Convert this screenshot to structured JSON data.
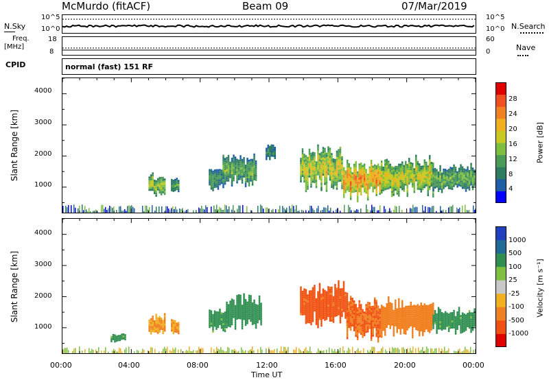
{
  "header": {
    "station": "McMurdo (fitACF)",
    "beam": "Beam 09",
    "date": "07/Mar/2019"
  },
  "noise_panel": {
    "left_label": "N.Sky",
    "right_label": "N.Search",
    "tick_top": "10^5",
    "tick_bottom": "10^0"
  },
  "freq_panel": {
    "left_label_line1": "Freq.",
    "left_label_line2": "[MHz]",
    "left_ticks": [
      "18",
      "8"
    ],
    "right_label": "Nave",
    "right_ticks": [
      "60",
      "0"
    ]
  },
  "cpid_panel": {
    "left_label": "CPID",
    "text": "normal (fast) 151 RF"
  },
  "power_panel": {
    "ylabel": "Slant Range [km]",
    "yticks": [
      "4000",
      "3000",
      "2000",
      "1000"
    ],
    "colorbar_label": "Power [dB]",
    "colorbar_ticks": [
      "28",
      "24",
      "20",
      "16",
      "12",
      "8",
      "4"
    ],
    "colors": [
      "#0000ff",
      "#1f5fa8",
      "#2e7d60",
      "#4a9a58",
      "#7fbf3f",
      "#c8c820",
      "#f0b020",
      "#f08020",
      "#f05020",
      "#e00000"
    ]
  },
  "velocity_panel": {
    "ylabel": "Slant Range [km]",
    "yticks": [
      "4000",
      "3000",
      "2000",
      "1000"
    ],
    "colorbar_label": "Velocity [m s⁻¹]",
    "colorbar_ticks": [
      "1000",
      "500",
      "100",
      "25",
      "-25",
      "-100",
      "-500",
      "-1000"
    ],
    "colors": [
      "#2040c0",
      "#206a9a",
      "#2f8f50",
      "#7fc040",
      "#c8c8c8",
      "#f0b020",
      "#f08020",
      "#f05010",
      "#e00000"
    ]
  },
  "time_axis": {
    "ticks": [
      "00:00",
      "04:00",
      "08:00",
      "12:00",
      "16:00",
      "20:00",
      "00:00"
    ],
    "label": "Time UT"
  },
  "chart_data": {
    "type": "heatmap",
    "title": "McMurdo (fitACF)",
    "x_range_hours": [
      0,
      24
    ],
    "y_range_km": [
      180,
      4500
    ],
    "power_db_range": [
      0,
      32
    ],
    "velocity_range": [
      -1200,
      1200
    ],
    "power_echo_regions": [
      {
        "t_start": 5.0,
        "t_end": 5.9,
        "r_low": 800,
        "r_high": 1400,
        "power_db": 18
      },
      {
        "t_start": 6.3,
        "t_end": 6.7,
        "r_low": 850,
        "r_high": 1300,
        "power_db": 14
      },
      {
        "t_start": 8.5,
        "t_end": 9.3,
        "r_low": 950,
        "r_high": 1700,
        "power_db": 12
      },
      {
        "t_start": 9.3,
        "t_end": 11.2,
        "r_low": 1100,
        "r_high": 2000,
        "power_db": 14
      },
      {
        "t_start": 11.8,
        "t_end": 12.3,
        "r_low": 1900,
        "r_high": 2400,
        "power_db": 10
      },
      {
        "t_start": 13.8,
        "t_end": 16.2,
        "r_low": 1000,
        "r_high": 2300,
        "power_db": 20
      },
      {
        "t_start": 16.3,
        "t_end": 18.5,
        "r_low": 700,
        "r_high": 1800,
        "power_db": 26
      },
      {
        "t_start": 18.5,
        "t_end": 21.5,
        "r_low": 800,
        "r_high": 1900,
        "power_db": 20
      },
      {
        "t_start": 21.5,
        "t_end": 24.0,
        "r_low": 900,
        "r_high": 1700,
        "power_db": 14
      }
    ],
    "velocity_echo_regions": [
      {
        "t_start": 2.8,
        "t_end": 3.6,
        "r_low": 550,
        "r_high": 800,
        "velocity": 100
      },
      {
        "t_start": 5.0,
        "t_end": 5.9,
        "r_low": 800,
        "r_high": 1400,
        "velocity": -100
      },
      {
        "t_start": 6.3,
        "t_end": 6.7,
        "r_low": 850,
        "r_high": 1300,
        "velocity": -100
      },
      {
        "t_start": 8.5,
        "t_end": 9.5,
        "r_low": 950,
        "r_high": 1600,
        "velocity": 100
      },
      {
        "t_start": 9.5,
        "t_end": 11.5,
        "r_low": 1100,
        "r_high": 2000,
        "velocity": 200
      },
      {
        "t_start": 13.8,
        "t_end": 16.5,
        "r_low": 1100,
        "r_high": 2400,
        "velocity": -500
      },
      {
        "t_start": 16.5,
        "t_end": 18.5,
        "r_low": 700,
        "r_high": 1900,
        "velocity": -300
      },
      {
        "t_start": 18.5,
        "t_end": 21.5,
        "r_low": 800,
        "r_high": 1900,
        "velocity": -200
      },
      {
        "t_start": 21.5,
        "t_end": 24.0,
        "r_low": 900,
        "r_high": 1600,
        "velocity": 100
      }
    ]
  }
}
